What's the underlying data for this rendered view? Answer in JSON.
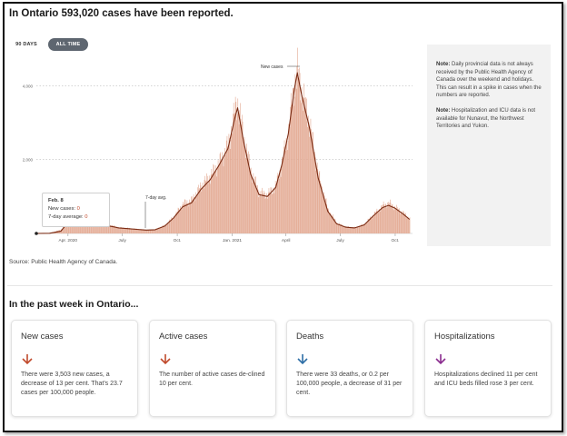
{
  "header": {
    "title": "In Ontario 593,020 cases have been reported."
  },
  "range_toggle": {
    "option_90": "90 DAYS",
    "option_all": "ALL TIME",
    "selected": "ALL TIME"
  },
  "colors": {
    "bar": "#e3a992",
    "line": "#7a2b13",
    "accent_red": "#c04a2c",
    "accent_blue": "#2d6ea6",
    "accent_purple": "#8a2c8f",
    "note_bg": "#f2f2f2"
  },
  "tooltip": {
    "date": "Feb. 8",
    "new_cases_label": "New cases:",
    "new_cases_value": "0",
    "avg_label": "7-day average:",
    "avg_value": "0"
  },
  "chart_data": {
    "type": "bar",
    "title": "",
    "xlabel": "",
    "ylabel": "",
    "ylim": [
      0,
      4500
    ],
    "yticks": [
      0,
      2000,
      4000
    ],
    "ytick_labels": [
      "",
      "2,000",
      "4,000"
    ],
    "xtick_labels": [
      "Apr. 2020",
      "July",
      "Oct.",
      "Jan. 2021",
      "April",
      "July",
      "Oct."
    ],
    "grid": true,
    "annotations": [
      "7-day avg.",
      "New cases"
    ],
    "series": [
      {
        "name": "New cases",
        "kind": "bar",
        "points": [
          [
            "2020-02-08",
            0
          ],
          [
            "2020-03-01",
            10
          ],
          [
            "2020-03-20",
            100
          ],
          [
            "2020-04-01",
            350
          ],
          [
            "2020-04-15",
            550
          ],
          [
            "2020-04-25",
            600
          ],
          [
            "2020-05-10",
            420
          ],
          [
            "2020-05-25",
            380
          ],
          [
            "2020-06-10",
            220
          ],
          [
            "2020-06-25",
            160
          ],
          [
            "2020-07-10",
            140
          ],
          [
            "2020-07-25",
            120
          ],
          [
            "2020-08-10",
            90
          ],
          [
            "2020-08-25",
            110
          ],
          [
            "2020-09-10",
            220
          ],
          [
            "2020-09-25",
            450
          ],
          [
            "2020-10-10",
            800
          ],
          [
            "2020-10-25",
            900
          ],
          [
            "2020-11-10",
            1300
          ],
          [
            "2020-11-25",
            1550
          ],
          [
            "2020-12-10",
            1900
          ],
          [
            "2020-12-25",
            2400
          ],
          [
            "2021-01-05",
            3300
          ],
          [
            "2021-01-10",
            3550
          ],
          [
            "2021-01-20",
            2600
          ],
          [
            "2021-02-01",
            1700
          ],
          [
            "2021-02-15",
            1100
          ],
          [
            "2021-03-01",
            1050
          ],
          [
            "2021-03-15",
            1300
          ],
          [
            "2021-03-25",
            1900
          ],
          [
            "2021-04-05",
            2800
          ],
          [
            "2021-04-15",
            4100
          ],
          [
            "2021-04-20",
            4400
          ],
          [
            "2021-04-28",
            3800
          ],
          [
            "2021-05-10",
            3000
          ],
          [
            "2021-05-25",
            1600
          ],
          [
            "2021-06-10",
            650
          ],
          [
            "2021-06-25",
            280
          ],
          [
            "2021-07-10",
            180
          ],
          [
            "2021-07-25",
            160
          ],
          [
            "2021-08-10",
            250
          ],
          [
            "2021-08-25",
            500
          ],
          [
            "2021-09-10",
            750
          ],
          [
            "2021-09-20",
            820
          ],
          [
            "2021-10-01",
            700
          ],
          [
            "2021-10-15",
            540
          ],
          [
            "2021-10-25",
            400
          ]
        ]
      },
      {
        "name": "7-day avg.",
        "kind": "line",
        "points": [
          [
            "2020-02-08",
            0
          ],
          [
            "2020-03-01",
            5
          ],
          [
            "2020-03-20",
            60
          ],
          [
            "2020-04-01",
            300
          ],
          [
            "2020-04-15",
            480
          ],
          [
            "2020-04-25",
            540
          ],
          [
            "2020-05-10",
            400
          ],
          [
            "2020-05-25",
            340
          ],
          [
            "2020-06-10",
            200
          ],
          [
            "2020-06-25",
            150
          ],
          [
            "2020-07-10",
            130
          ],
          [
            "2020-07-25",
            110
          ],
          [
            "2020-08-10",
            90
          ],
          [
            "2020-08-25",
            100
          ],
          [
            "2020-09-10",
            200
          ],
          [
            "2020-09-25",
            420
          ],
          [
            "2020-10-10",
            720
          ],
          [
            "2020-10-25",
            830
          ],
          [
            "2020-11-10",
            1200
          ],
          [
            "2020-11-25",
            1450
          ],
          [
            "2020-12-10",
            1850
          ],
          [
            "2020-12-25",
            2300
          ],
          [
            "2021-01-05",
            3100
          ],
          [
            "2021-01-10",
            3400
          ],
          [
            "2021-01-20",
            2500
          ],
          [
            "2021-02-01",
            1600
          ],
          [
            "2021-02-15",
            1050
          ],
          [
            "2021-03-01",
            1000
          ],
          [
            "2021-03-15",
            1250
          ],
          [
            "2021-03-25",
            1850
          ],
          [
            "2021-04-05",
            2700
          ],
          [
            "2021-04-15",
            3900
          ],
          [
            "2021-04-20",
            4350
          ],
          [
            "2021-04-28",
            3700
          ],
          [
            "2021-05-10",
            2900
          ],
          [
            "2021-05-25",
            1500
          ],
          [
            "2021-06-10",
            600
          ],
          [
            "2021-06-25",
            260
          ],
          [
            "2021-07-10",
            170
          ],
          [
            "2021-07-25",
            150
          ],
          [
            "2021-08-10",
            230
          ],
          [
            "2021-08-25",
            470
          ],
          [
            "2021-09-10",
            700
          ],
          [
            "2021-09-20",
            760
          ],
          [
            "2021-10-01",
            680
          ],
          [
            "2021-10-15",
            520
          ],
          [
            "2021-10-25",
            380
          ]
        ]
      }
    ]
  },
  "notes": [
    {
      "label": "Note:",
      "text": "Daily provincial data is not always received by the Public Health Agency of Canada over the weekend and holidays. This can result in a spike in cases when the numbers are reported."
    },
    {
      "label": "Note:",
      "text": "Hospitalization and ICU data is not available for Nunavut, the Northwest Territories and Yukon."
    }
  ],
  "source": "Source: Public Health Agency of Canada.",
  "week": {
    "title": "In the past week in Ontario...",
    "cards": [
      {
        "title": "New cases",
        "arrow": "down-arrow-icon",
        "color": "#c04a2c",
        "text": "There were 3,503 new cases, a decrease of 13 per cent. That's 23.7 cases per 100,000 people."
      },
      {
        "title": "Active cases",
        "arrow": "down-arrow-icon",
        "color": "#c04a2c",
        "text": "The number of active cases de-clined 10 per cent."
      },
      {
        "title": "Deaths",
        "arrow": "down-arrow-icon",
        "color": "#2d6ea6",
        "text": "There were 33 deaths, or 0.2 per 100,000 people, a decrease of 31 per cent."
      },
      {
        "title": "Hospitalizations",
        "arrow": "down-arrow-icon",
        "color": "#8a2c8f",
        "text": "Hospitalizations declined 11 per cent and ICU beds filled rose 3 per cent."
      }
    ]
  }
}
